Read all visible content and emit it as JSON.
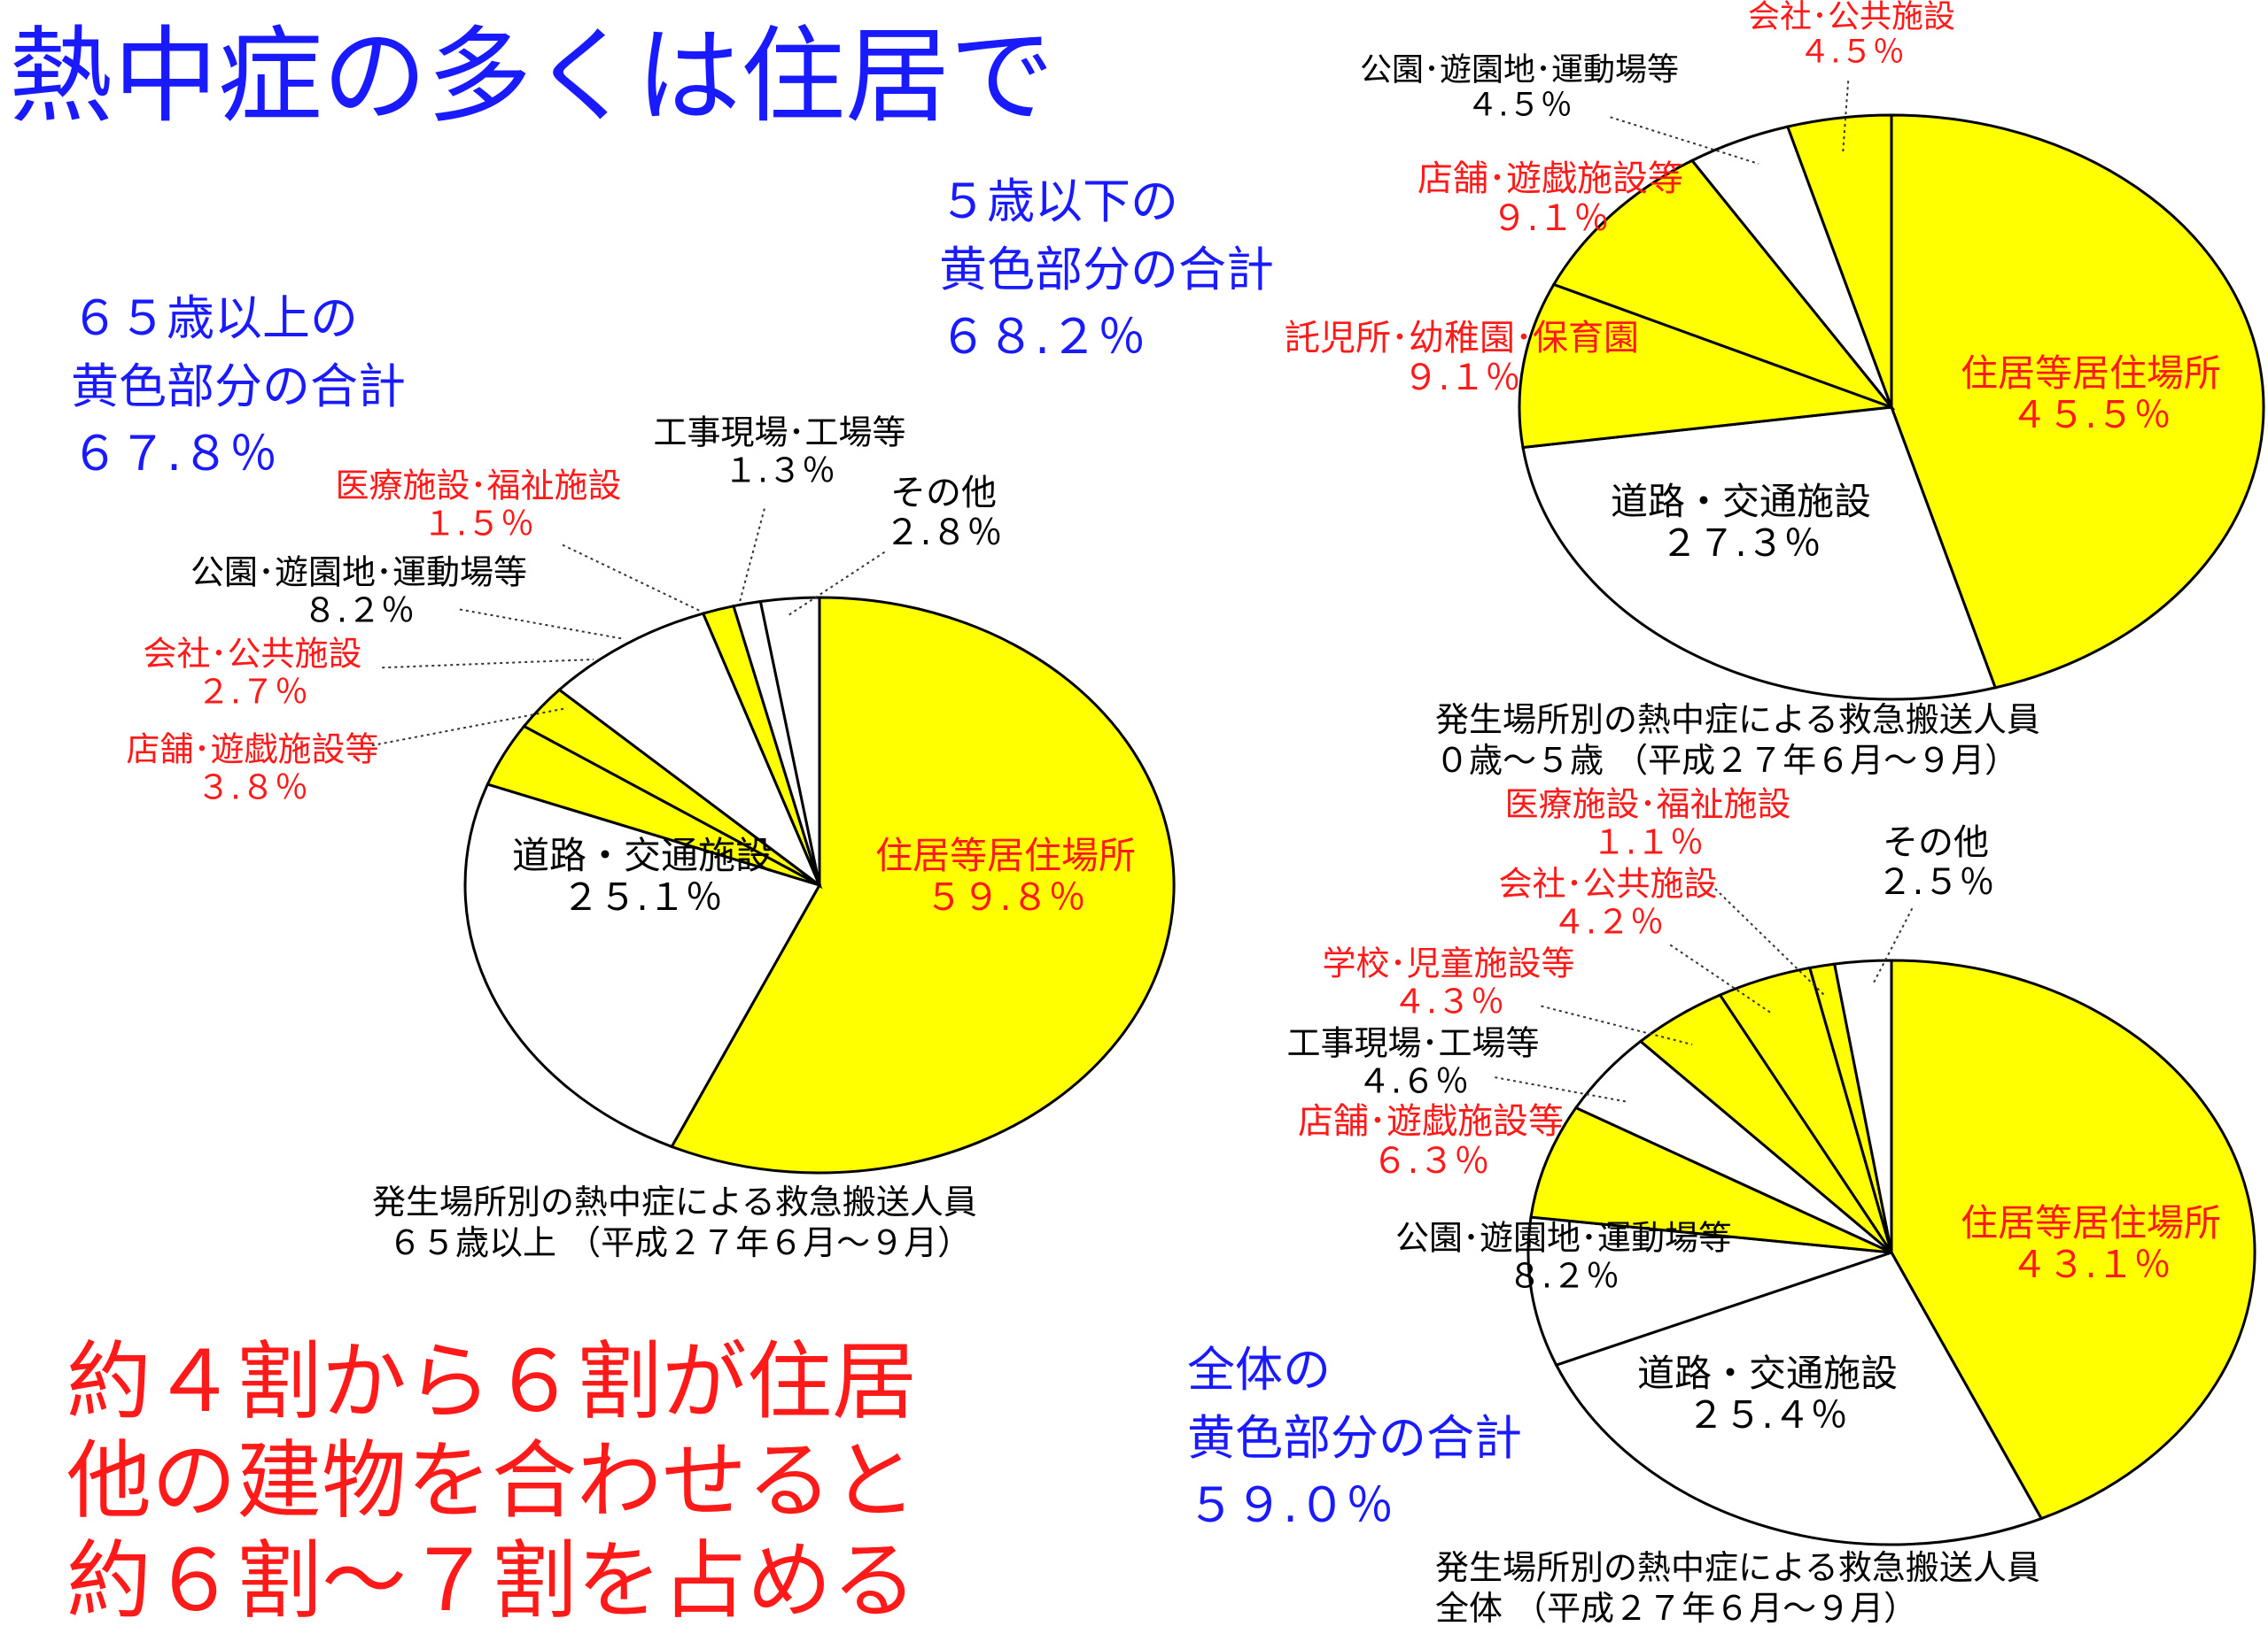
{
  "headline": "熱中症の多くは住居で",
  "summaries": {
    "age65": [
      "６５歳以上の",
      "黄色部分の合計",
      "６７.８％"
    ],
    "age5": [
      "５歳以下の",
      "黄色部分の合計",
      "６８.２％"
    ],
    "overall": [
      "全体の",
      "黄色部分の合計",
      "５９.０％"
    ]
  },
  "message": [
    "約４割から６割が住居",
    "他の建物を合わせると",
    "約６割～７割を占める"
  ],
  "colors": {
    "yellow": "#ffff00",
    "white": "#ffffff",
    "edge": "#000000",
    "blue_text": "#1a1aff",
    "red_text": "#ff1a1a"
  },
  "chart_data": [
    {
      "type": "pie",
      "title": "発生場所別の熱中症による救急搬送人員",
      "subtitle": "６５歳以上 （平成２７年６月～９月）",
      "slices": [
        {
          "label": "住居等居住場所",
          "value_text": "５９.８％",
          "value": 59.8,
          "yellow": true
        },
        {
          "label": "道路・交通施設",
          "value_text": "２５.１％",
          "value": 25.1,
          "yellow": false
        },
        {
          "label": "店舗･遊戯施設等",
          "value_text": "３.８％",
          "value": 3.8,
          "yellow": true
        },
        {
          "label": "会社･公共施設",
          "value_text": "２.７％",
          "value": 2.7,
          "yellow": true
        },
        {
          "label": "公園･遊園地･運動場等",
          "value_text": "８.２％",
          "value": 8.2,
          "yellow": false
        },
        {
          "label": "医療施設･福祉施設",
          "value_text": "１.５％",
          "value": 1.5,
          "yellow": true
        },
        {
          "label": "工事現場･工場等",
          "value_text": "１.３％",
          "value": 1.3,
          "yellow": false
        },
        {
          "label": "その他",
          "value_text": "２.８％",
          "value": 2.8,
          "yellow": false
        }
      ]
    },
    {
      "type": "pie",
      "title": "発生場所別の熱中症による救急搬送人員",
      "subtitle": "０歳～５歳 （平成２７年６月～９月）",
      "slices": [
        {
          "label": "住居等居住場所",
          "value_text": "４５.５％",
          "value": 45.5,
          "yellow": true
        },
        {
          "label": "道路・交通施設",
          "value_text": "２７.３％",
          "value": 27.3,
          "yellow": false
        },
        {
          "label": "託児所･幼稚園･保育園",
          "value_text": "９.１％",
          "value": 9.1,
          "yellow": true
        },
        {
          "label": "店舗･遊戯施設等",
          "value_text": "９.１％",
          "value": 9.1,
          "yellow": true
        },
        {
          "label": "公園･遊園地･運動場等",
          "value_text": "４.５％",
          "value": 4.5,
          "yellow": false
        },
        {
          "label": "会社･公共施設",
          "value_text": "４.５％",
          "value": 4.5,
          "yellow": true
        }
      ]
    },
    {
      "type": "pie",
      "title": "発生場所別の熱中症による救急搬送人員",
      "subtitle": "全体 （平成２７年６月～９月）",
      "slices": [
        {
          "label": "住居等居住場所",
          "value_text": "４３.１％",
          "value": 43.1,
          "yellow": true
        },
        {
          "label": "道路・交通施設",
          "value_text": "２５.４％",
          "value": 25.4,
          "yellow": false
        },
        {
          "label": "公園･遊園地･運動場等",
          "value_text": "８.２％",
          "value": 8.2,
          "yellow": false
        },
        {
          "label": "店舗･遊戯施設等",
          "value_text": "６.３％",
          "value": 6.3,
          "yellow": true
        },
        {
          "label": "工事現場･工場等",
          "value_text": "４.６％",
          "value": 4.6,
          "yellow": false
        },
        {
          "label": "学校･児童施設等",
          "value_text": "４.３％",
          "value": 4.3,
          "yellow": true
        },
        {
          "label": "会社･公共施設",
          "value_text": "４.２％",
          "value": 4.2,
          "yellow": true
        },
        {
          "label": "医療施設･福祉施設",
          "value_text": "１.１％",
          "value": 1.1,
          "yellow": true
        },
        {
          "label": "その他",
          "value_text": "２.５％",
          "value": 2.5,
          "yellow": false
        }
      ]
    }
  ]
}
